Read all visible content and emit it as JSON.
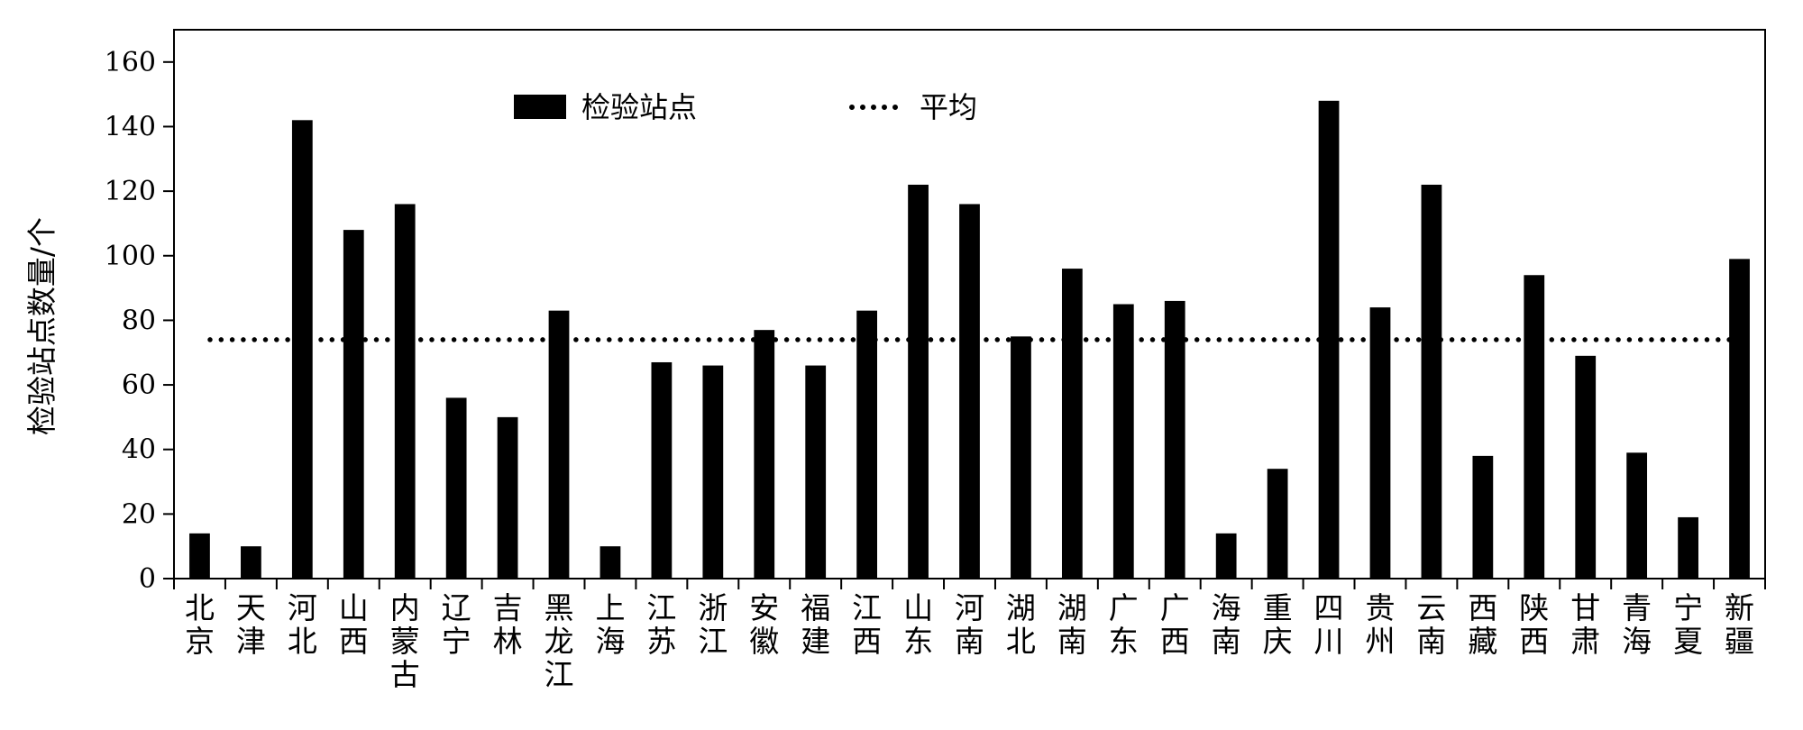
{
  "chart_data": {
    "type": "bar",
    "ylabel": "检验站点数量/个",
    "ylim": [
      0,
      170
    ],
    "yticks": [
      0,
      20,
      40,
      60,
      80,
      100,
      120,
      140,
      160
    ],
    "grid": false,
    "legend_position": "top-center",
    "categories": [
      "北京",
      "天津",
      "河北",
      "山西",
      "内蒙古",
      "辽宁",
      "吉林",
      "黑龙江",
      "上海",
      "江苏",
      "浙江",
      "安徽",
      "福建",
      "江西",
      "山东",
      "河南",
      "湖北",
      "湖南",
      "广东",
      "广西",
      "海南",
      "重庆",
      "四川",
      "贵州",
      "云南",
      "西藏",
      "陕西",
      "甘肃",
      "青海",
      "宁夏",
      "新疆"
    ],
    "series": [
      {
        "name": "检验站点",
        "type": "bar",
        "color": "#000000",
        "values": [
          14,
          10,
          142,
          108,
          116,
          56,
          50,
          83,
          10,
          67,
          66,
          77,
          66,
          83,
          122,
          116,
          75,
          96,
          85,
          86,
          14,
          34,
          148,
          84,
          122,
          38,
          94,
          69,
          39,
          19,
          99
        ]
      },
      {
        "name": "平均",
        "type": "line",
        "style": "dotted",
        "color": "#000000",
        "value": 74
      }
    ]
  }
}
